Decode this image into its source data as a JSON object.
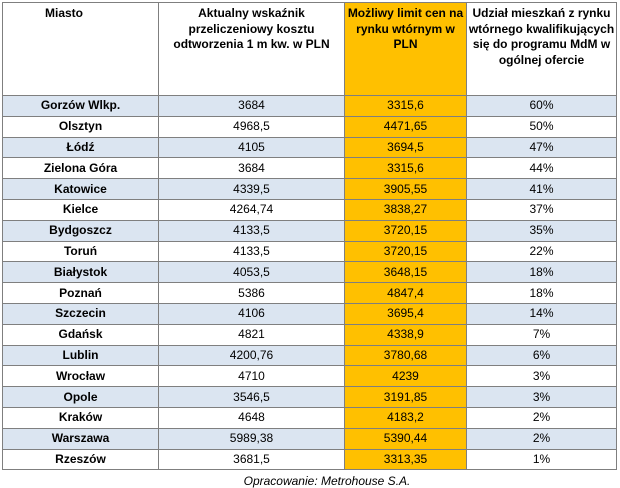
{
  "table": {
    "headers": {
      "city": "Miasto",
      "cost": "Aktualny wskaźnik przeliczeniowy kosztu odtworzenia 1 m kw. w PLN",
      "limit": "Możliwy limit cen na rynku wtórnym w PLN",
      "share": "Udział mieszkań z rynku wtórnego kwalifikujących się do programu MdM w ogólnej ofercie"
    },
    "rows": [
      {
        "city": "Gorzów Wlkp.",
        "cost": "3684",
        "limit": "3315,6",
        "share": "60%"
      },
      {
        "city": "Olsztyn",
        "cost": "4968,5",
        "limit": "4471,65",
        "share": "50%"
      },
      {
        "city": "Łódź",
        "cost": "4105",
        "limit": "3694,5",
        "share": "47%"
      },
      {
        "city": "Zielona Góra",
        "cost": "3684",
        "limit": "3315,6",
        "share": "44%"
      },
      {
        "city": "Katowice",
        "cost": "4339,5",
        "limit": "3905,55",
        "share": "41%"
      },
      {
        "city": "Kielce",
        "cost": "4264,74",
        "limit": "3838,27",
        "share": "37%"
      },
      {
        "city": "Bydgoszcz",
        "cost": "4133,5",
        "limit": "3720,15",
        "share": "35%"
      },
      {
        "city": "Toruń",
        "cost": "4133,5",
        "limit": "3720,15",
        "share": "22%"
      },
      {
        "city": "Białystok",
        "cost": "4053,5",
        "limit": "3648,15",
        "share": "18%"
      },
      {
        "city": "Poznań",
        "cost": "5386",
        "limit": "4847,4",
        "share": "18%"
      },
      {
        "city": "Szczecin",
        "cost": "4106",
        "limit": "3695,4",
        "share": "14%"
      },
      {
        "city": "Gdańsk",
        "cost": "4821",
        "limit": "4338,9",
        "share": "7%"
      },
      {
        "city": "Lublin",
        "cost": "4200,76",
        "limit": "3780,68",
        "share": "6%"
      },
      {
        "city": "Wrocław",
        "cost": "4710",
        "limit": "4239",
        "share": "3%"
      },
      {
        "city": "Opole",
        "cost": "3546,5",
        "limit": "3191,85",
        "share": "3%"
      },
      {
        "city": "Kraków",
        "cost": "4648",
        "limit": "4183,2",
        "share": "2%"
      },
      {
        "city": "Warszawa",
        "cost": "5989,38",
        "limit": "5390,44",
        "share": "2%"
      },
      {
        "city": "Rzeszów",
        "cost": "3681,5",
        "limit": "3313,35",
        "share": "1%"
      }
    ]
  },
  "source": "Opracowanie:  Metrohouse  S.A.",
  "colors": {
    "highlight_column": "#ffc000",
    "stripe_row": "#dbe5f1",
    "border": "#7f7f7f"
  }
}
